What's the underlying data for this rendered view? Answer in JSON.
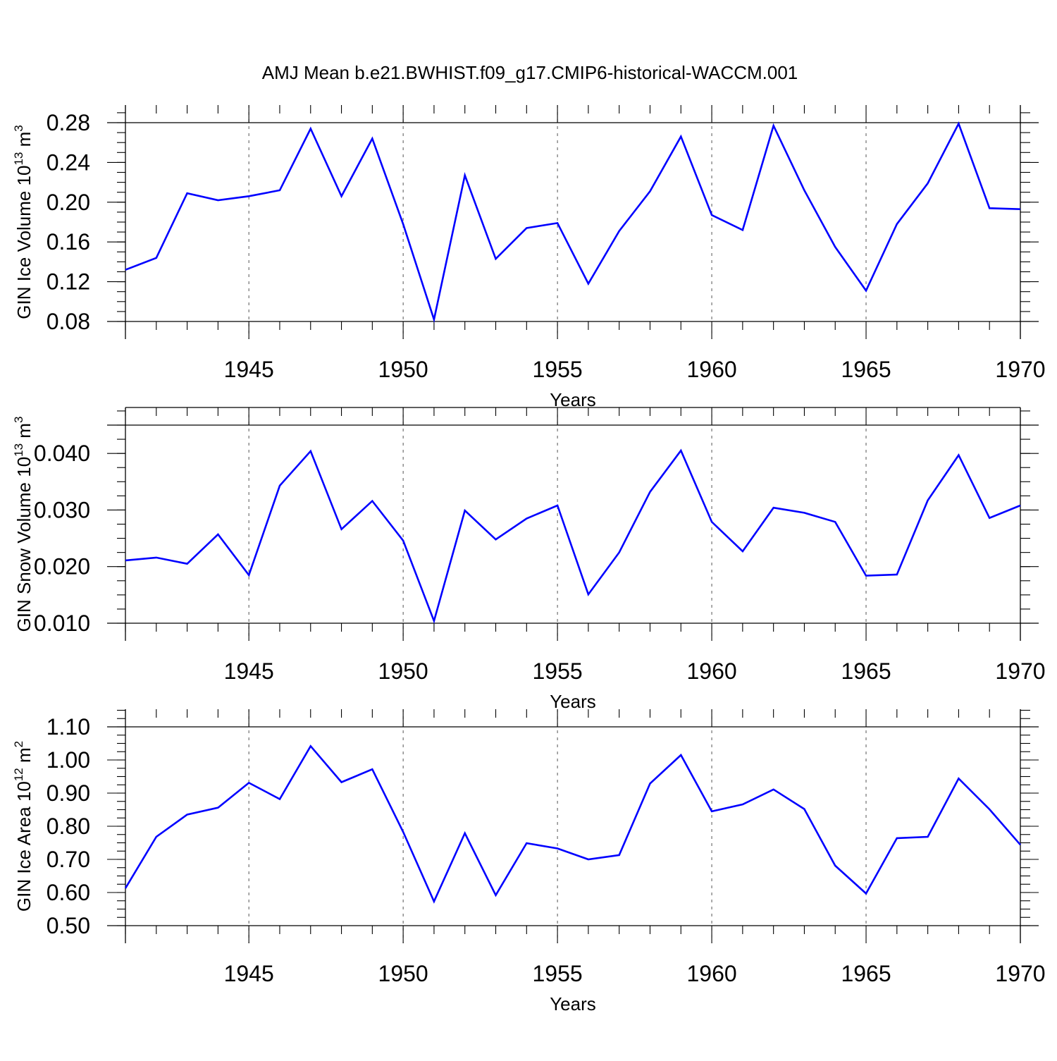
{
  "title": "AMJ Mean b.e21.BWHIST.f09_g17.CMIP6-historical-WACCM.001",
  "line_color": "#0000ff",
  "chart_data": [
    {
      "type": "line",
      "ylabel": "GIN Ice Volume 10",
      "ylabel_exponent": "13",
      "ylabel_unit": "m",
      "ylabel_unit_exponent": "3",
      "xlabel": "Years",
      "xlim": [
        1941,
        1970
      ],
      "ylim": [
        0.08,
        0.28
      ],
      "yticks": [
        "0.08",
        "0.12",
        "0.16",
        "0.20",
        "0.24",
        "0.28"
      ],
      "xticks": [
        "1945",
        "1950",
        "1955",
        "1960",
        "1965",
        "1970"
      ],
      "x": [
        1941,
        1942,
        1943,
        1944,
        1945,
        1946,
        1947,
        1948,
        1949,
        1950,
        1951,
        1952,
        1953,
        1954,
        1955,
        1956,
        1957,
        1958,
        1959,
        1960,
        1961,
        1962,
        1963,
        1964,
        1965,
        1966,
        1967,
        1968,
        1969,
        1970
      ],
      "values": [
        0.132,
        0.144,
        0.209,
        0.202,
        0.206,
        0.212,
        0.274,
        0.206,
        0.264,
        0.178,
        0.082,
        0.227,
        0.143,
        0.174,
        0.179,
        0.118,
        0.171,
        0.211,
        0.266,
        0.187,
        0.172,
        0.277,
        0.212,
        0.155,
        0.111,
        0.178,
        0.219,
        0.279,
        0.194,
        0.193
      ]
    },
    {
      "type": "line",
      "ylabel": "GIN Snow Volume 10",
      "ylabel_exponent": "13",
      "ylabel_unit": "m",
      "ylabel_unit_exponent": "3",
      "xlabel": "Years",
      "xlim": [
        1941,
        1970
      ],
      "ylim": [
        0.01,
        0.045
      ],
      "yticks": [
        "0.010",
        "0.020",
        "0.030",
        "0.040"
      ],
      "xticks": [
        "1945",
        "1950",
        "1955",
        "1960",
        "1965",
        "1970"
      ],
      "x": [
        1941,
        1942,
        1943,
        1944,
        1945,
        1946,
        1947,
        1948,
        1949,
        1950,
        1951,
        1952,
        1953,
        1954,
        1955,
        1956,
        1957,
        1958,
        1959,
        1960,
        1961,
        1962,
        1963,
        1964,
        1965,
        1966,
        1967,
        1968,
        1969,
        1970
      ],
      "values": [
        0.0211,
        0.0216,
        0.0205,
        0.0257,
        0.0185,
        0.0343,
        0.0404,
        0.0266,
        0.0316,
        0.0246,
        0.0104,
        0.0299,
        0.0248,
        0.0285,
        0.0308,
        0.0151,
        0.0225,
        0.0332,
        0.0405,
        0.0279,
        0.0227,
        0.0304,
        0.0295,
        0.0279,
        0.0184,
        0.0186,
        0.0317,
        0.0397,
        0.0286,
        0.0308
      ]
    },
    {
      "type": "line",
      "ylabel": "GIN Ice Area 10",
      "ylabel_exponent": "12",
      "ylabel_unit": "m",
      "ylabel_unit_exponent": "2",
      "xlabel": "Years",
      "xlim": [
        1941,
        1970
      ],
      "ylim": [
        0.5,
        1.1
      ],
      "yticks": [
        "0.50",
        "0.60",
        "0.70",
        "0.80",
        "0.90",
        "1.00",
        "1.10"
      ],
      "xticks": [
        "1945",
        "1950",
        "1955",
        "1960",
        "1965",
        "1970"
      ],
      "x": [
        1941,
        1942,
        1943,
        1944,
        1945,
        1946,
        1947,
        1948,
        1949,
        1950,
        1951,
        1952,
        1953,
        1954,
        1955,
        1956,
        1957,
        1958,
        1959,
        1960,
        1961,
        1962,
        1963,
        1964,
        1965,
        1966,
        1967,
        1968,
        1969,
        1970
      ],
      "values": [
        0.613,
        0.768,
        0.835,
        0.856,
        0.931,
        0.882,
        1.042,
        0.933,
        0.972,
        0.783,
        0.573,
        0.779,
        0.592,
        0.749,
        0.733,
        0.7,
        0.713,
        0.929,
        1.015,
        0.845,
        0.866,
        0.911,
        0.852,
        0.681,
        0.597,
        0.764,
        0.768,
        0.944,
        0.851,
        0.744
      ]
    }
  ]
}
